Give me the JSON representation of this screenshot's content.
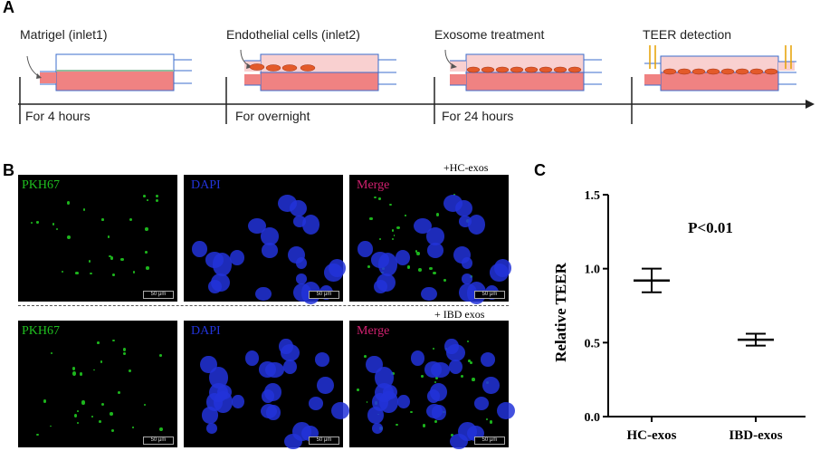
{
  "panelA": {
    "letter": "A",
    "steps": [
      {
        "title": "Matrigel (inlet1)",
        "duration": "For 4 hours"
      },
      {
        "title": "Endothelial cells (inlet2)",
        "duration": "For overnight"
      },
      {
        "title": "Exosome treatment",
        "duration": "For 24 hours"
      },
      {
        "title": "TEER detection",
        "duration": ""
      }
    ]
  },
  "panelB": {
    "letter": "B",
    "rows": [
      {
        "condition": "+HC-exos",
        "channels": [
          "PKH67",
          "DAPI",
          "Merge"
        ]
      },
      {
        "condition": "+ IBD exos",
        "channels": [
          "PKH67",
          "DAPI",
          "Merge"
        ]
      }
    ],
    "scale_bar_label": "50 μm",
    "colors": {
      "pkh67": "#1fbf1f",
      "dapi": "#2233d9",
      "merge": "#d0206f"
    }
  },
  "panelC": {
    "letter": "C",
    "chart_data": {
      "type": "scatter",
      "categories": [
        "HC-exos",
        "IBD-exos"
      ],
      "series": [
        {
          "mean": [
            0.92,
            0.52
          ],
          "error": [
            0.08,
            0.04
          ]
        }
      ],
      "ylabel": "Relative TEER",
      "ylim": [
        0.0,
        1.5
      ],
      "yticks": [
        "0.0",
        "0.5",
        "1.0",
        "1.5"
      ],
      "annotation": "P<0.01",
      "grid": false
    }
  }
}
